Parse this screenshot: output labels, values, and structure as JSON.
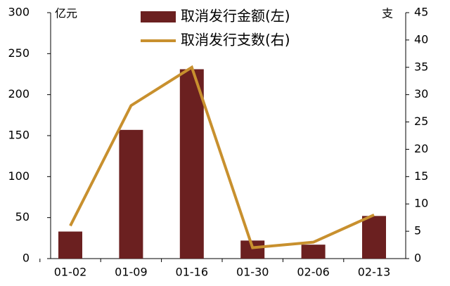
{
  "chart_data": {
    "type": "bar",
    "y_unit": "亿元",
    "y2_unit": "支",
    "categories": [
      "01-02",
      "01-09",
      "01-16",
      "01-30",
      "02-06",
      "02-13"
    ],
    "series": [
      {
        "name": "取消发行金额(左)",
        "type": "bar",
        "color": "#6b2020",
        "values": [
          33,
          157,
          231,
          22,
          17,
          52
        ]
      },
      {
        "name": "取消发行支数(右)",
        "type": "line",
        "axis": "y2",
        "color": "#c8902e",
        "values": [
          6,
          28,
          35,
          2,
          3,
          8
        ]
      }
    ],
    "ylim": [
      0,
      300
    ],
    "yticks": [
      0,
      50,
      100,
      150,
      200,
      250,
      300
    ],
    "y2lim": [
      0,
      45
    ],
    "y2ticks": [
      0,
      5,
      10,
      15,
      20,
      25,
      30,
      35,
      40,
      45
    ],
    "legend": "top"
  }
}
